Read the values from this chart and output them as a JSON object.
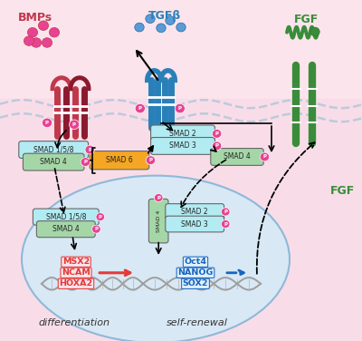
{
  "bg_pink": "#fce4ec",
  "bg_cell": "#d8e8f5",
  "membrane_color": "#aac4d8",
  "cell_edge_color": "#90b8d8",
  "bmps_label": "BMPs",
  "tgfb_label": "TGFβ",
  "fgf_label_top": "FGF",
  "fgf_label_right": "FGF",
  "smad_light_blue": "#b2ebf2",
  "smad_green": "#a5d6a7",
  "smad_orange": "#f5a623",
  "p_color": "#e84393",
  "bmp_color1": "#c0394b",
  "bmp_color2": "#8b1a2e",
  "tgfb_color": "#2980b9",
  "fgf_color": "#3a8c3a",
  "dna_gray": "#9e9e9e",
  "dna_blue": "#5b9bd5",
  "gene_red": "#e53935",
  "gene_blue": "#1565c0",
  "differentiation_label": "differentiation",
  "self_renewal_label": "self-renewal",
  "msx2_label": "MSX2",
  "ncam_label": "NCAM",
  "hoxa2_label": "HOXA2",
  "oct4_label": "Oct4",
  "nanog_label": "NANOG",
  "sox2_label": "SOX2"
}
